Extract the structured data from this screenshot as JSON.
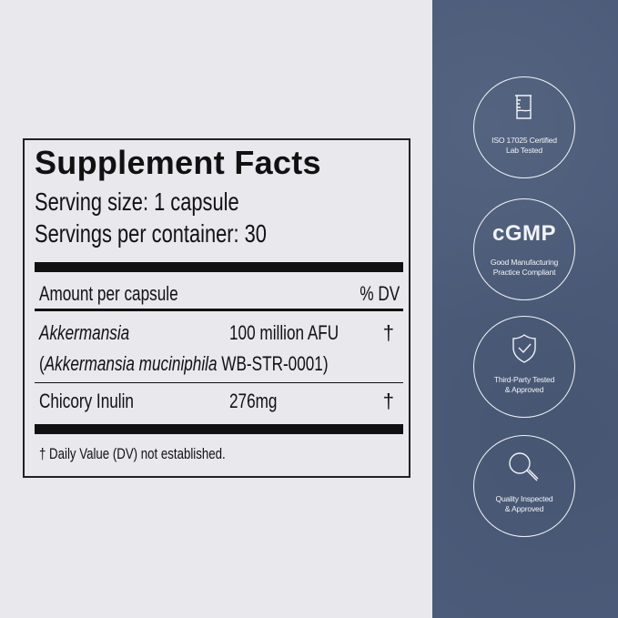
{
  "label": {
    "title": "Supplement Facts",
    "serving_size": "Serving size: 1 capsule",
    "servings_per_container": "Servings per container: 30",
    "amount_header": "Amount per capsule",
    "dv_header": "% DV",
    "rows": [
      {
        "name": "Akkermansia",
        "sub_open": "(",
        "sub_italic": "Akkermansia muciniphila",
        "sub_rest": " WB-STR-0001)",
        "amount": "100 million AFU",
        "dv": "†"
      },
      {
        "name": "Chicory Inulin",
        "amount": "276mg",
        "dv": "†"
      }
    ],
    "footnote": "† Daily Value (DV) not established."
  },
  "badges": [
    {
      "icon": "beaker-icon",
      "line1": "ISO 17025 Certified",
      "line2": "Lab Tested"
    },
    {
      "icon": "cgmp-logo",
      "logo_text": "cGMP",
      "line1": "Good Manufacturing",
      "line2": "Practice Compliant"
    },
    {
      "icon": "shield-check-icon",
      "line1": "Third-Party Tested",
      "line2": "& Approved"
    },
    {
      "icon": "magnifier-icon",
      "line1": "Quality Inspected",
      "line2": "& Approved"
    }
  ],
  "colors": {
    "panel": "#4b5b79",
    "background": "#e8e8ed",
    "ink": "#111111"
  }
}
